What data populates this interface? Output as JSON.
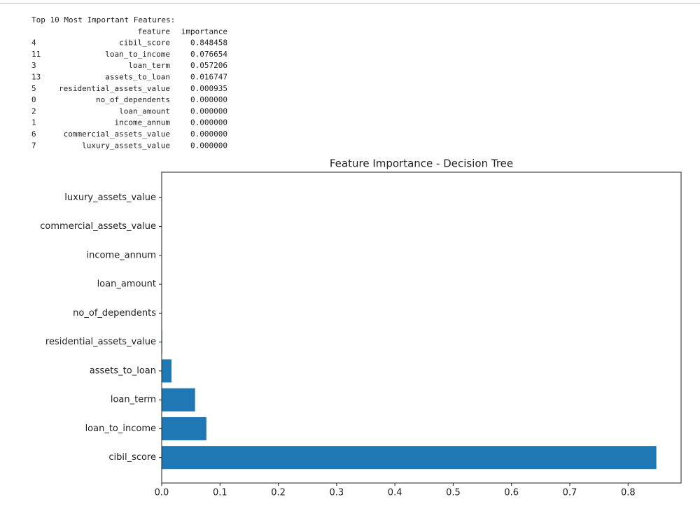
{
  "output": {
    "heading": "Top 10 Most Important Features:",
    "columns": [
      "feature",
      "importance"
    ],
    "rows": [
      [
        "4",
        "cibil_score",
        "0.848458"
      ],
      [
        "11",
        "loan_to_income",
        "0.076654"
      ],
      [
        "3",
        "loan_term",
        "0.057206"
      ],
      [
        "13",
        "assets_to_loan",
        "0.016747"
      ],
      [
        "5",
        "residential_assets_value",
        "0.000935"
      ],
      [
        "0",
        "no_of_dependents",
        "0.000000"
      ],
      [
        "2",
        "loan_amount",
        "0.000000"
      ],
      [
        "1",
        "income_annum",
        "0.000000"
      ],
      [
        "6",
        "commercial_assets_value",
        "0.000000"
      ],
      [
        "7",
        "luxury_assets_value",
        "0.000000"
      ]
    ]
  },
  "chart_data": {
    "type": "barh",
    "title": "Feature Importance - Decision Tree",
    "categories": [
      "cibil_score",
      "loan_to_income",
      "loan_term",
      "assets_to_loan",
      "residential_assets_value",
      "no_of_dependents",
      "loan_amount",
      "income_annum",
      "commercial_assets_value",
      "luxury_assets_value"
    ],
    "values": [
      0.848458,
      0.076654,
      0.057206,
      0.016747,
      0.000935,
      0,
      0,
      0,
      0,
      0
    ],
    "color": "#1f77b4",
    "xlim": [
      0,
      0.8909
    ],
    "xticks": [
      {
        "value": 0,
        "label": "0.0"
      },
      0.1,
      0.2,
      0.3,
      0.4,
      0.5,
      0.6,
      0.7,
      0.8
    ]
  }
}
